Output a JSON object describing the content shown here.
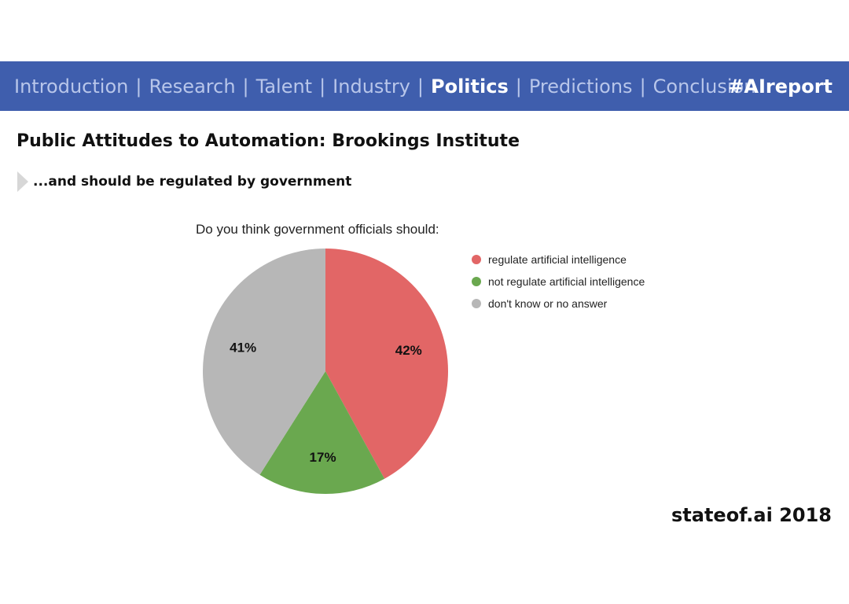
{
  "nav": {
    "items": [
      {
        "label": "Introduction",
        "active": false
      },
      {
        "label": "Research",
        "active": false
      },
      {
        "label": "Talent",
        "active": false
      },
      {
        "label": "Industry",
        "active": false
      },
      {
        "label": "Politics",
        "active": true
      },
      {
        "label": "Predictions",
        "active": false
      },
      {
        "label": "Conclusion",
        "active": false
      }
    ],
    "separator": "|",
    "hashtag": "#AIreport"
  },
  "slide": {
    "title": "Public Attitudes to Automation: Brookings Institute",
    "subtitle": "...and should be regulated by government",
    "footer": "stateof.ai 2018"
  },
  "colors": {
    "header_bg": "#3f5ead",
    "nav_text": "#b8c6ea",
    "nav_active": "#ffffff"
  },
  "chart_data": {
    "type": "pie",
    "title": "Do you think government officials should:",
    "categories": [
      "regulate artificial intelligence",
      "not regulate artificial intelligence",
      "don't know or no answer"
    ],
    "values": [
      42,
      17,
      41
    ],
    "labels": [
      "42%",
      "17%",
      "41%"
    ],
    "colors": [
      "#e26666",
      "#6aa84f",
      "#b7b7b7"
    ],
    "legend": "right"
  }
}
